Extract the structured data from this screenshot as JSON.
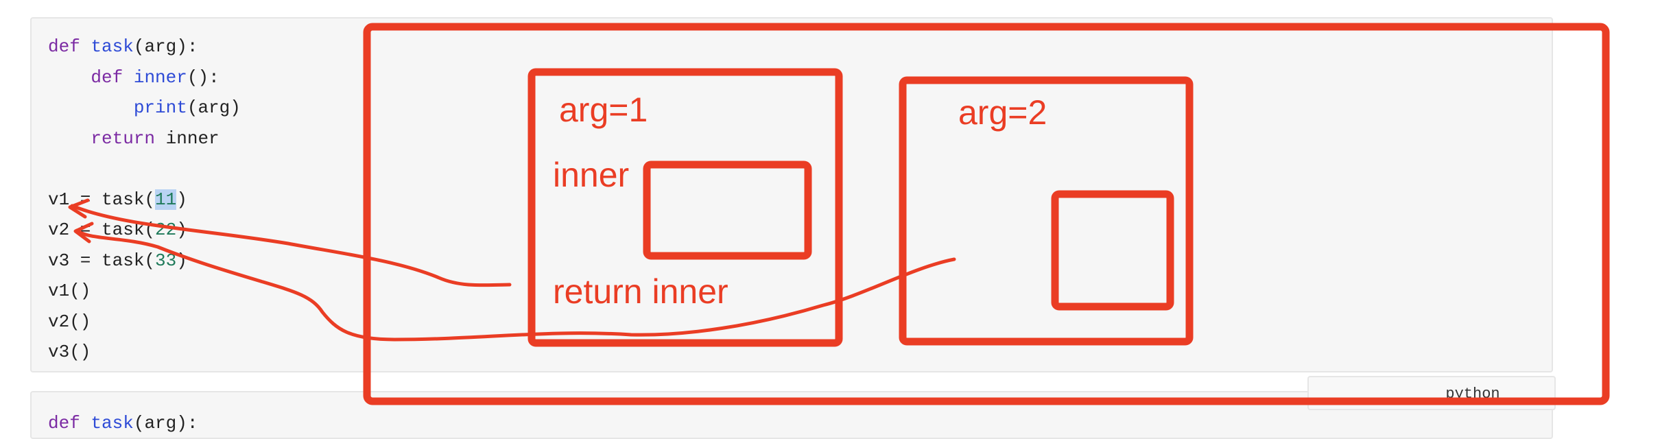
{
  "code_block_1": {
    "lines": [
      [
        {
          "t": "def ",
          "c": "kw"
        },
        {
          "t": "task",
          "c": "fn"
        },
        {
          "t": "(arg):",
          "c": ""
        }
      ],
      [
        {
          "t": "    ",
          "c": ""
        },
        {
          "t": "def ",
          "c": "kw"
        },
        {
          "t": "inner",
          "c": "fn"
        },
        {
          "t": "():",
          "c": ""
        }
      ],
      [
        {
          "t": "        ",
          "c": ""
        },
        {
          "t": "print",
          "c": "fn"
        },
        {
          "t": "(arg)",
          "c": ""
        }
      ],
      [
        {
          "t": "    ",
          "c": ""
        },
        {
          "t": "return ",
          "c": "kw"
        },
        {
          "t": "inner",
          "c": ""
        }
      ],
      [],
      [
        {
          "t": "v1 = task(",
          "c": ""
        },
        {
          "t": "11",
          "c": "num hl"
        },
        {
          "t": ")",
          "c": ""
        }
      ],
      [
        {
          "t": "v2 = task(",
          "c": ""
        },
        {
          "t": "22",
          "c": "num"
        },
        {
          "t": ")",
          "c": ""
        }
      ],
      [
        {
          "t": "v3 = task(",
          "c": ""
        },
        {
          "t": "33",
          "c": "num"
        },
        {
          "t": ")",
          "c": ""
        }
      ],
      [
        {
          "t": "v1()",
          "c": ""
        }
      ],
      [
        {
          "t": "v2()",
          "c": ""
        }
      ],
      [
        {
          "t": "v3()",
          "c": ""
        }
      ]
    ]
  },
  "language_tag": "python",
  "code_block_2": {
    "lines": [
      [
        {
          "t": "def ",
          "c": "kw"
        },
        {
          "t": "task",
          "c": "fn"
        },
        {
          "t": "(arg):",
          "c": ""
        }
      ]
    ]
  },
  "annotations": {
    "box1_arg": "arg=1",
    "box1_inner": "inner",
    "box1_return": "return inner",
    "box2_arg": "arg=2"
  },
  "colors": {
    "annotation": "#ea3d24",
    "keyword": "#7b2aa3",
    "function": "#2e4bd6",
    "number": "#1f7a5a",
    "highlight": "#b9d3f3"
  }
}
